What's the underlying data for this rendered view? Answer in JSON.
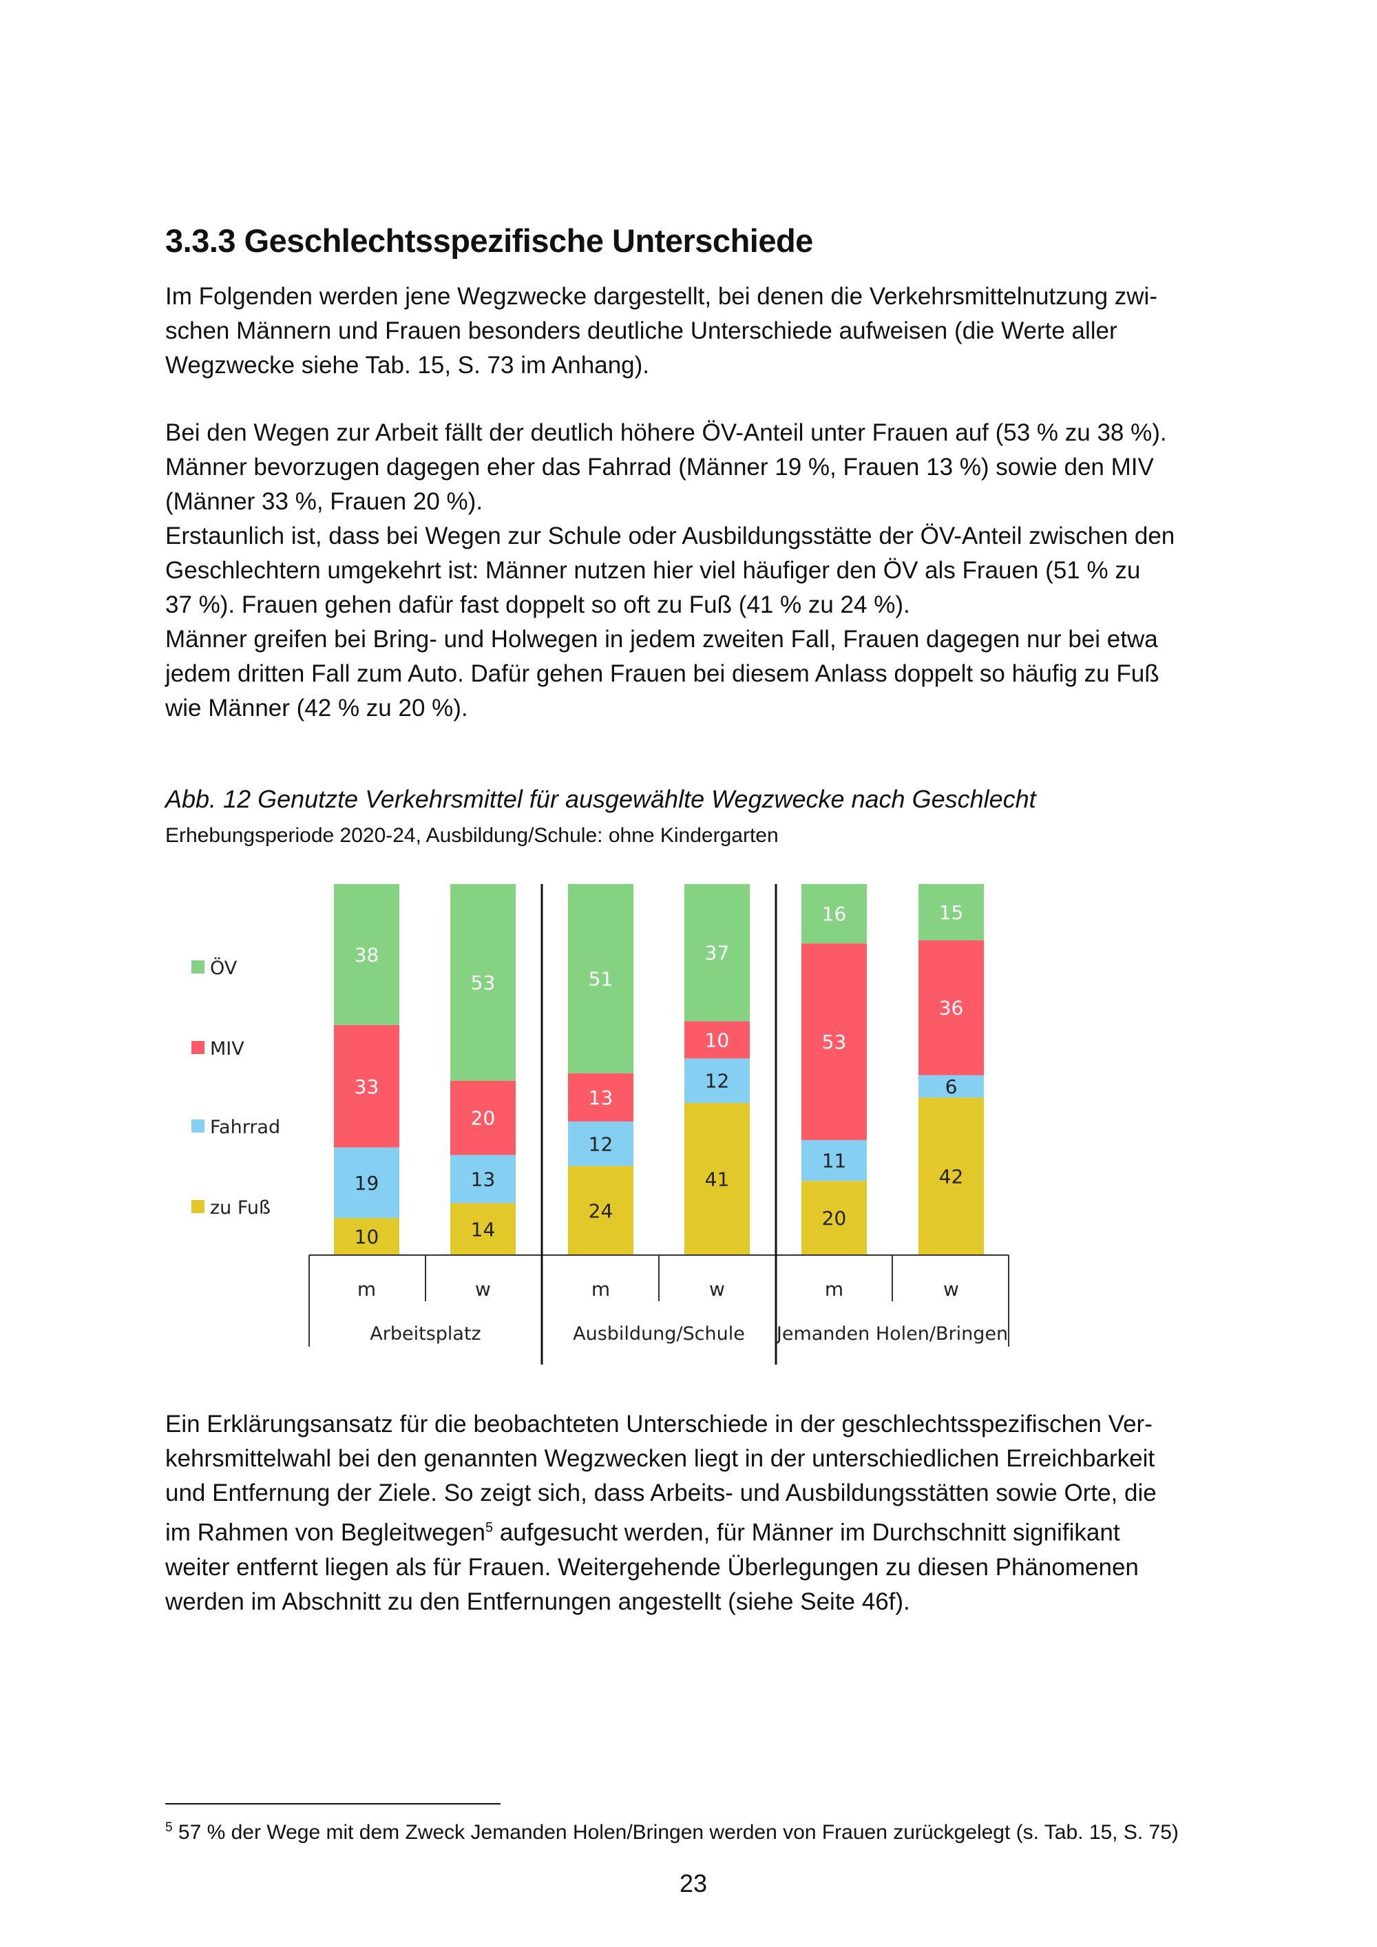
{
  "heading": "3.3.3 Geschlechtsspezifische Unterschiede",
  "paragraph1": [
    "Im Folgenden werden jene Wegzwecke dargestellt, bei denen die Verkehrsmittelnutzung zwi-",
    "schen Männern und Frauen besonders deutliche Unterschiede aufweisen (die Werte aller",
    "Wegzwecke siehe Tab. 15, S. 73 im Anhang)."
  ],
  "paragraph2": [
    "Bei den Wegen zur Arbeit fällt der deutlich höhere ÖV-Anteil unter Frauen auf (53 % zu 38 %).",
    "Männer bevorzugen dagegen eher das Fahrrad (Männer 19 %, Frauen 13 %) sowie den MIV",
    "(Männer 33 %, Frauen 20 %).",
    "Erstaunlich ist, dass bei Wegen zur Schule oder Ausbildungsstätte der ÖV-Anteil zwischen den",
    "Geschlechtern umgekehrt ist: Männer nutzen hier viel häufiger den ÖV als Frauen (51 % zu",
    "37 %). Frauen gehen dafür fast doppelt so oft zu Fuß (41 % zu 24 %).",
    "Männer greifen bei Bring- und Holwegen in jedem zweiten Fall, Frauen dagegen nur bei etwa",
    "jedem dritten Fall zum Auto. Dafür gehen Frauen bei diesem Anlass doppelt so häufig zu Fuß",
    "wie Männer (42 % zu 20 %)."
  ],
  "figure": {
    "caption": "Abb. 12  Genutzte Verkehrsmittel für ausgewählte Wegzwecke nach Geschlecht",
    "subcaption": "Erhebungsperiode 2020-24, Ausbildung/Schule: ohne Kindergarten"
  },
  "chart_data": {
    "type": "bar",
    "stacked": true,
    "unit": "%",
    "groups": [
      "Arbeitsplatz",
      "Ausbildung/Schule",
      "Jemanden Holen/Bringen"
    ],
    "categories": [
      "m",
      "w",
      "m",
      "w",
      "m",
      "w"
    ],
    "series": [
      {
        "name": "zu Fuß",
        "color": "#e2c829",
        "values": [
          10,
          14,
          24,
          41,
          20,
          42
        ]
      },
      {
        "name": "Fahrrad",
        "color": "#84cff2",
        "values": [
          19,
          13,
          12,
          12,
          11,
          6
        ]
      },
      {
        "name": "MIV",
        "color": "#fc5a66",
        "values": [
          33,
          20,
          13,
          10,
          53,
          36
        ]
      },
      {
        "name": "ÖV",
        "color": "#84d282",
        "values": [
          38,
          53,
          51,
          37,
          16,
          15
        ]
      }
    ],
    "legend_order": [
      "ÖV",
      "MIV",
      "Fahrrad",
      "zu Fuß"
    ],
    "legend_position": "left",
    "ylim": [
      0,
      100
    ]
  },
  "paragraph3": [
    "Ein Erklärungsansatz für die beobachteten Unterschiede in der geschlechtsspezifischen Ver-",
    "kehrsmittelwahl bei den genannten Wegzwecken liegt in der unterschiedlichen Erreichbarkeit",
    "und Entfernung der Ziele. So zeigt sich, dass Arbeits- und Ausbildungsstätten sowie Orte, die",
    "im Rahmen von Begleitwegen",
    "5",
    " aufgesucht werden, für Männer im Durchschnitt signifikant",
    "weiter entfernt liegen als für Frauen. Weitergehende Überlegungen zu diesen Phänomenen",
    "werden im Abschnitt zu den Entfernungen angestellt (siehe Seite 46f)."
  ],
  "footnote": {
    "marker": "5",
    "text": " 57 % der Wege mit dem Zweck Jemanden Holen/Bringen werden von Frauen zurückgelegt (s. Tab. 15, S. 75)"
  },
  "page_number": "23"
}
